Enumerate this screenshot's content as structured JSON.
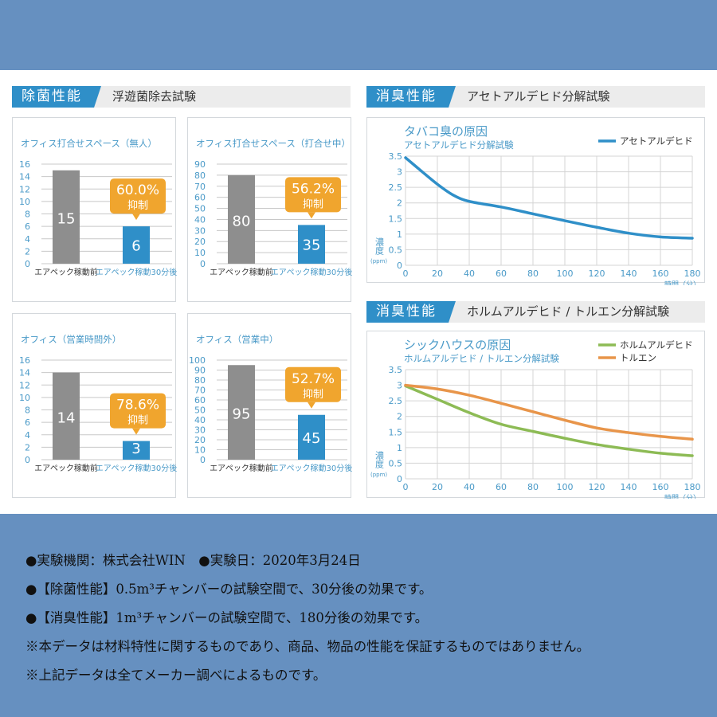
{
  "sections": {
    "sterilization": {
      "tag": "除菌性能",
      "subtitle": "浮遊菌除去試験"
    },
    "deodor1": {
      "tag": "消臭性能",
      "subtitle": "アセトアルデヒド分解試験"
    },
    "deodor2": {
      "tag": "消臭性能",
      "subtitle": "ホルムアルデヒド / トルエン分解試験"
    }
  },
  "colors": {
    "blue": "#2f8fc8",
    "gray": "#8e8e8e",
    "orange": "#f0a52e",
    "green": "#8dbb55",
    "toluene": "#e8954a",
    "tick": "#4a9ac8"
  },
  "chart_data": [
    {
      "type": "bar",
      "title": "オフィス打合せスペース（無人）",
      "categories": [
        "エアペック稼動前",
        "エアペック稼動30分後"
      ],
      "values": [
        15,
        6
      ],
      "ylim": [
        0,
        16
      ],
      "yticks": [
        0,
        2,
        4,
        6,
        8,
        10,
        12,
        14,
        16
      ],
      "callout": {
        "value": "60.0%",
        "label": "抑制"
      }
    },
    {
      "type": "bar",
      "title": "オフィス打合せスペース（打合せ中）",
      "categories": [
        "エアペック稼動前",
        "エアペック稼動30分後"
      ],
      "values": [
        80,
        35
      ],
      "ylim": [
        0,
        90
      ],
      "yticks": [
        0,
        10,
        20,
        30,
        40,
        50,
        60,
        70,
        80,
        90
      ],
      "callout": {
        "value": "56.2%",
        "label": "抑制"
      }
    },
    {
      "type": "bar",
      "title": "オフィス（営業時間外）",
      "categories": [
        "エアペック稼動前",
        "エアペック稼動30分後"
      ],
      "values": [
        14,
        3
      ],
      "ylim": [
        0,
        16
      ],
      "yticks": [
        0,
        2,
        4,
        6,
        8,
        10,
        12,
        14,
        16
      ],
      "callout": {
        "value": "78.6%",
        "label": "抑制"
      }
    },
    {
      "type": "bar",
      "title": "オフィス（営業中）",
      "categories": [
        "エアペック稼動前",
        "エアペック稼動30分後"
      ],
      "values": [
        95,
        45
      ],
      "ylim": [
        0,
        100
      ],
      "yticks": [
        0,
        10,
        20,
        30,
        40,
        50,
        60,
        70,
        80,
        90,
        100
      ],
      "callout": {
        "value": "52.7%",
        "label": "抑制"
      }
    },
    {
      "type": "line",
      "title": "タバコ臭の原因",
      "subtitle": "アセトアルデヒド分解試験",
      "xlabel": "時間（分）",
      "ylabel": "濃度",
      "yunit": "(ppm)",
      "xlim": [
        0,
        180
      ],
      "ylim": [
        0,
        3.5
      ],
      "xticks": [
        0,
        20,
        40,
        60,
        80,
        100,
        120,
        140,
        160,
        180
      ],
      "yticks": [
        0,
        0.5,
        1.0,
        1.5,
        2.0,
        2.5,
        3.0,
        3.5
      ],
      "grid": true,
      "legend": "top-right",
      "series": [
        {
          "name": "アセトアルデヒド",
          "color": "#2f8fc8",
          "x": [
            0,
            10,
            20,
            30,
            40,
            60,
            80,
            100,
            120,
            140,
            160,
            180
          ],
          "y": [
            3.45,
            3.02,
            2.6,
            2.25,
            2.05,
            1.87,
            1.65,
            1.43,
            1.22,
            1.03,
            0.91,
            0.87
          ]
        }
      ]
    },
    {
      "type": "line",
      "title": "シックハウスの原因",
      "subtitle": "ホルムアルデヒド / トルエン分解試験",
      "xlabel": "時間（分）",
      "ylabel": "濃度",
      "yunit": "(ppm)",
      "xlim": [
        0,
        180
      ],
      "ylim": [
        0,
        3.5
      ],
      "xticks": [
        0,
        20,
        40,
        60,
        80,
        100,
        120,
        140,
        160,
        180
      ],
      "yticks": [
        0,
        0.5,
        1.0,
        1.5,
        2.0,
        2.5,
        3.0,
        3.5
      ],
      "grid": true,
      "legend": "top-right",
      "series": [
        {
          "name": "ホルムアルデヒド",
          "color": "#8dbb55",
          "x": [
            0,
            20,
            40,
            60,
            80,
            100,
            120,
            140,
            160,
            180
          ],
          "y": [
            2.98,
            2.55,
            2.12,
            1.75,
            1.52,
            1.3,
            1.1,
            0.95,
            0.82,
            0.74
          ]
        },
        {
          "name": "トルエン",
          "color": "#e8954a",
          "x": [
            0,
            20,
            40,
            60,
            80,
            100,
            120,
            140,
            160,
            180
          ],
          "y": [
            3.0,
            2.88,
            2.68,
            2.42,
            2.15,
            1.88,
            1.63,
            1.48,
            1.36,
            1.27
          ]
        }
      ]
    }
  ],
  "notes": [
    "●実験機関：株式会社WIN　●実験日：2020年3月24日",
    "●【除菌性能】0.5m³チャンバーの試験空間で、30分後の効果です。",
    "●【消臭性能】1m³チャンバーの試験空間で、180分後の効果です。",
    "※本データは材料特性に関するものであり、商品、物品の性能を保証するものではありません。",
    "※上記データは全てメーカー調べによるものです。"
  ]
}
